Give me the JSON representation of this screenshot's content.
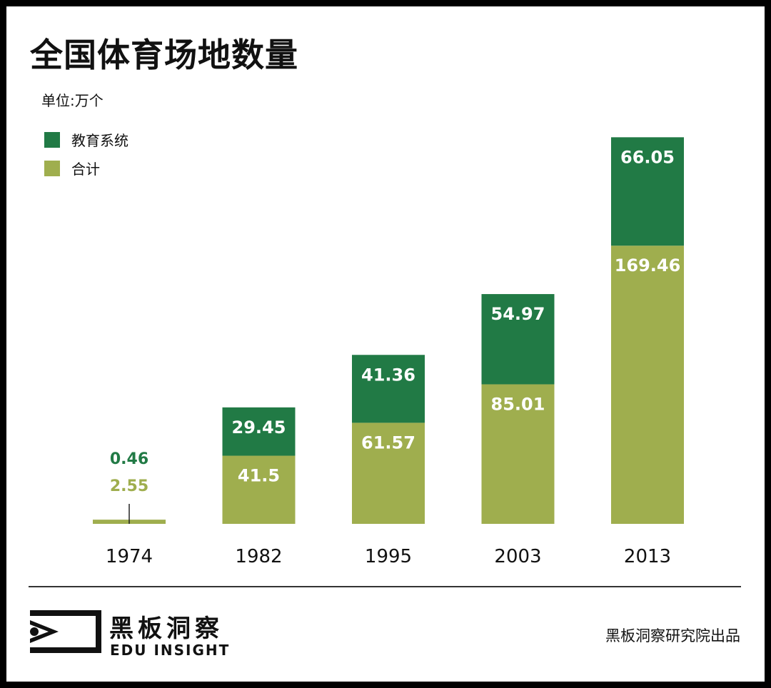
{
  "title": "全国体育场地数量",
  "unit": "单位:万个",
  "legend": [
    {
      "label": "教育系统",
      "color": "#217a45"
    },
    {
      "label": "合计",
      "color": "#9fae4e"
    }
  ],
  "chart_data": {
    "type": "bar",
    "stacked": true,
    "categories": [
      "1974",
      "1982",
      "1995",
      "2003",
      "2013"
    ],
    "series": [
      {
        "name": "合计",
        "color": "#9fae4e",
        "values": [
          2.55,
          41.5,
          61.57,
          85.01,
          169.46
        ],
        "labels": [
          "2.55",
          "41.5",
          "61.57",
          "85.01",
          "169.46"
        ]
      },
      {
        "name": "教育系统",
        "color": "#217a45",
        "values": [
          0.46,
          29.45,
          41.36,
          54.97,
          66.05
        ],
        "labels": [
          "0.46",
          "29.45",
          "41.36",
          "54.97",
          "66.05"
        ]
      }
    ],
    "grid": false,
    "legend_position": "top-left"
  },
  "footer": {
    "brand_cn": "黑板洞察",
    "brand_en": "EDU INSIGHT",
    "credit": "黑板洞察研究院出品"
  }
}
